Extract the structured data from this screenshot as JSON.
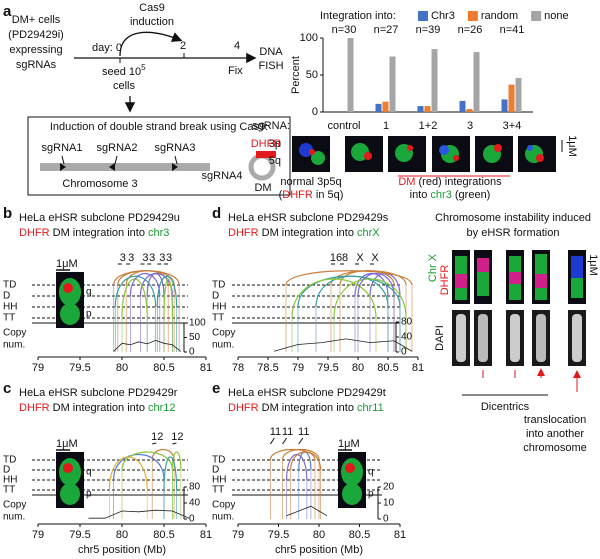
{
  "panel_a": {
    "label": "a",
    "cells": [
      "DM+ cells",
      "(PD29429i)",
      "expressing",
      "sgRNAs"
    ],
    "induction": [
      "Cas9",
      "induction"
    ],
    "day": "day: 0",
    "day2": "2",
    "day4": "4",
    "seed": [
      "seed 10",
      "5",
      "cells"
    ],
    "fix": "Fix",
    "fish": [
      "DNA",
      "FISH"
    ],
    "box_title": "Induction of double strand break using Cas9:",
    "sgrnas": [
      "sgRNA1",
      "sgRNA2",
      "sgRNA3",
      "sgRNA4"
    ],
    "chromosome": "Chromosome 3",
    "dhfr": "DHFR",
    "dm": "DM",
    "images": {
      "p": "3p",
      "q": "5q",
      "scale": "1μM",
      "normal": "normal 3p5q",
      "normal_note": [
        "(",
        "DHFR",
        " in 5q)"
      ],
      "caption": [
        "DM",
        " (red) integrations",
        "into ",
        "chr3",
        " (green)"
      ]
    }
  },
  "chart_data": [
    {
      "type": "bar",
      "legend_title": "Integration into:",
      "ylabel": "Percent",
      "xlabel": "sgRNA:",
      "categories": [
        "control",
        "1",
        "1+2",
        "3",
        "3+4"
      ],
      "n_labels": [
        "n=30",
        "n=27",
        "n=39",
        "n=26",
        "n=41"
      ],
      "series": [
        {
          "name": "Chr3",
          "color": "#4472c4",
          "values": [
            0,
            11,
            8,
            15,
            17
          ]
        },
        {
          "name": "random",
          "color": "#ed7d31",
          "values": [
            0,
            14,
            8,
            4,
            37
          ]
        },
        {
          "name": "none",
          "color": "#a5a5a5",
          "values": [
            100,
            75,
            85,
            81,
            46
          ]
        }
      ],
      "ylim": [
        0,
        100
      ],
      "yticks": [
        0,
        50,
        100
      ]
    },
    {
      "type": "genome",
      "label": "b",
      "title": "HeLa eHSR subclone PD29429u",
      "subtitle": [
        "DHFR",
        " DM integration into ",
        "chr3"
      ],
      "rows": [
        "TD",
        "D",
        "HH",
        "TT"
      ],
      "ylabel": [
        "Copy",
        "num."
      ],
      "xlim": [
        79,
        81
      ],
      "xticks": [
        79,
        79.5,
        80,
        80.5,
        81
      ],
      "ylim": [
        0,
        100
      ],
      "yticks": [
        0,
        50,
        100
      ],
      "x": [
        79.9,
        80.0,
        80.1,
        80.2,
        80.3,
        80.4,
        80.5,
        80.6,
        80.7
      ],
      "values": [
        2,
        30,
        25,
        35,
        28,
        40,
        30,
        25,
        2
      ],
      "arcs": [
        {
          "start": 79.95,
          "end": 80.62,
          "type": "TD",
          "color": "#c8803c"
        },
        {
          "start": 80.05,
          "end": 80.55,
          "type": "TD",
          "color": "#c8803c"
        },
        {
          "start": 80.22,
          "end": 80.6,
          "type": "D",
          "color": "#7d6bd0"
        },
        {
          "start": 80.3,
          "end": 80.5,
          "type": "D",
          "color": "#7d6bd0"
        },
        {
          "start": 80.42,
          "end": 80.65,
          "type": "HH",
          "color": "#3aa0a0"
        },
        {
          "start": 80.5,
          "end": 80.6,
          "type": "TT",
          "color": "#8cc63f"
        },
        {
          "start": 79.92,
          "end": 80.4,
          "type": "HH",
          "color": "#3aa0a0"
        },
        {
          "start": 80.0,
          "end": 80.3,
          "type": "TT",
          "color": "#8cc63f"
        },
        {
          "start": 80.1,
          "end": 80.45,
          "type": "D",
          "color": "#7d6bd0"
        },
        {
          "start": 79.9,
          "end": 80.68,
          "type": "TD",
          "color": "#c8803c"
        }
      ],
      "arc_labels": [
        "3",
        "3",
        "3",
        "3",
        "3",
        "3"
      ],
      "inset": {
        "scale": "1μM",
        "q": "q",
        "p": "p"
      }
    },
    {
      "type": "genome",
      "label": "c",
      "title": "HeLa eHSR subclone PD29429r",
      "subtitle": [
        "DHFR",
        " DM integration into ",
        "chr12"
      ],
      "rows": [
        "TD",
        "D",
        "HH",
        "TT"
      ],
      "ylabel": [
        "Copy",
        "num."
      ],
      "xlabel": "chr5 position (Mb)",
      "xlim": [
        79,
        81
      ],
      "xticks": [
        79,
        79.5,
        80,
        80.5,
        81
      ],
      "ylim": [
        0,
        80
      ],
      "yticks": [
        0,
        40,
        80
      ],
      "x": [
        79.6,
        79.8,
        80.0,
        80.2,
        80.4,
        80.6,
        80.8
      ],
      "values": [
        2,
        2,
        20,
        18,
        22,
        20,
        2
      ],
      "arcs": [
        {
          "start": 80.36,
          "end": 80.62,
          "type": "TD",
          "color": "#c8803c"
        },
        {
          "start": 80.6,
          "end": 80.7,
          "type": "D",
          "color": "#8cc63f"
        },
        {
          "start": 79.9,
          "end": 80.5,
          "type": "HH",
          "color": "#5b7fd6"
        },
        {
          "start": 80.0,
          "end": 80.6,
          "type": "D",
          "color": "#8cc63f"
        },
        {
          "start": 79.85,
          "end": 80.3,
          "type": "TT",
          "color": "#e0b040"
        },
        {
          "start": 80.5,
          "end": 80.65,
          "type": "TT",
          "color": "#3aa0a0"
        }
      ],
      "arc_labels": [
        "12",
        "12"
      ],
      "inset": {
        "scale": "1μM",
        "q": "q",
        "p": "p"
      }
    },
    {
      "type": "genome",
      "label": "d",
      "title": "HeLa eHSR subclone PD29429s",
      "subtitle": [
        "DHFR",
        " DM integration into ",
        "chrX"
      ],
      "rows": [
        "TD",
        "D",
        "HH",
        "TT"
      ],
      "ylabel": [
        "Copy",
        "num."
      ],
      "xlim": [
        78,
        81
      ],
      "xticks": [
        78,
        78.5,
        79,
        79.5,
        80,
        80.5,
        81
      ],
      "ylim": [
        0,
        80
      ],
      "yticks": [
        0,
        40,
        80
      ],
      "x": [
        78.6,
        79.0,
        79.4,
        79.8,
        80.2,
        80.6,
        80.9
      ],
      "values": [
        2,
        20,
        25,
        35,
        25,
        30,
        2
      ],
      "arcs": [
        {
          "start": 79.55,
          "end": 80.8,
          "type": "TD",
          "color": "#c8803c"
        },
        {
          "start": 79.7,
          "end": 80.6,
          "type": "TD",
          "color": "#c8803c"
        },
        {
          "start": 79.95,
          "end": 80.5,
          "type": "D",
          "color": "#7d6bd0"
        },
        {
          "start": 80.2,
          "end": 80.7,
          "type": "D",
          "color": "#7d6bd0"
        },
        {
          "start": 78.8,
          "end": 80.9,
          "type": "TD",
          "color": "#c8803c"
        },
        {
          "start": 79.0,
          "end": 80.7,
          "type": "HH",
          "color": "#3aa0a0"
        },
        {
          "start": 79.3,
          "end": 80.5,
          "type": "HH",
          "color": "#3aa0a0"
        },
        {
          "start": 78.9,
          "end": 80.3,
          "type": "TT",
          "color": "#8cc63f"
        },
        {
          "start": 79.6,
          "end": 80.8,
          "type": "TT",
          "color": "#8cc63f"
        },
        {
          "start": 80.0,
          "end": 80.6,
          "type": "D",
          "color": "#7d6bd0"
        }
      ],
      "arc_labels": [
        "16",
        "8",
        "X",
        "X"
      ]
    },
    {
      "type": "genome",
      "label": "e",
      "title": "HeLa eHSR subclone PD29429t",
      "subtitle": [
        "DHFR",
        " DM integration into ",
        "chr11"
      ],
      "rows": [
        "TD",
        "D",
        "HH",
        "TT"
      ],
      "ylabel": [
        "Copy",
        "num."
      ],
      "xlabel": "chr5 position (Mb)",
      "xlim": [
        79,
        81
      ],
      "xticks": [
        79,
        79.5,
        80,
        80.5,
        81
      ],
      "ylim": [
        0,
        20
      ],
      "yticks": [
        0,
        10,
        20
      ],
      "x": [
        79.6,
        79.75,
        79.9,
        80.0,
        80.1
      ],
      "values": [
        2,
        5,
        8,
        5,
        2
      ],
      "arcs": [
        {
          "start": 79.4,
          "end": 79.95,
          "type": "TD",
          "color": "#c8803c"
        },
        {
          "start": 79.55,
          "end": 80.0,
          "type": "TD",
          "color": "#c8803c"
        },
        {
          "start": 79.75,
          "end": 79.9,
          "type": "D",
          "color": "#5b7fd6"
        },
        {
          "start": 79.6,
          "end": 79.85,
          "type": "HH",
          "color": "#7d6bd0"
        },
        {
          "start": 79.65,
          "end": 80.02,
          "type": "D",
          "color": "#c8803c"
        }
      ],
      "arc_labels": [
        "11",
        "11",
        "11"
      ],
      "inset": {
        "scale": "1μM",
        "q": "q",
        "p": "p"
      }
    }
  ],
  "panel_d_right": {
    "title": [
      "Chromosome instability induced",
      "by eHSR formation"
    ],
    "chrx": "Chr X",
    "dhfr": "DHFR",
    "dapi": "DAPI",
    "scale": "1μM",
    "dicentrics": "Dicentrics",
    "translocation": [
      "translocation",
      "into another",
      "chromosome"
    ]
  }
}
